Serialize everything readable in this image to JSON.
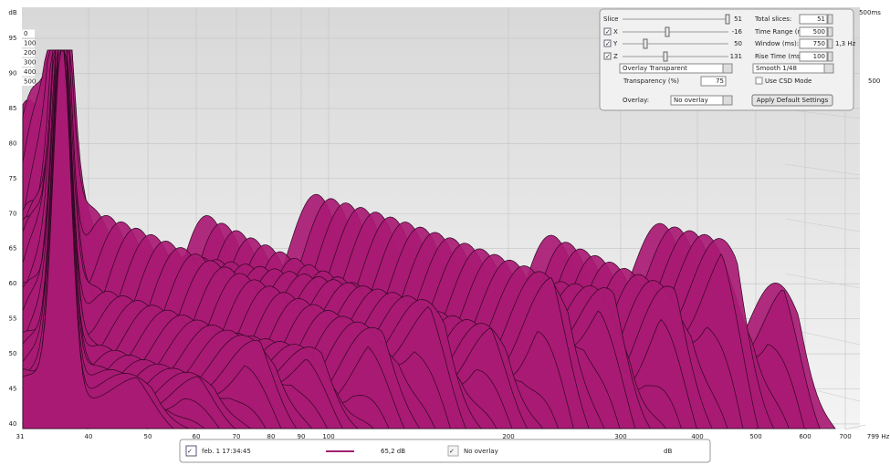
{
  "plot": {
    "y_unit": "dB",
    "y_ticks": [
      95,
      90,
      85,
      80,
      75,
      70,
      65,
      60,
      55,
      50,
      45,
      40
    ],
    "x_ticks": [
      31,
      40,
      50,
      60,
      70,
      80,
      90,
      100,
      200,
      300,
      400,
      500,
      600,
      700,
      "799 Hz"
    ],
    "time_range_label": "500ms",
    "depth_ticks": [
      0,
      100,
      200,
      300,
      400,
      500
    ],
    "depth_end_label": 500
  },
  "controls": {
    "slice": {
      "label": "Slice",
      "value": 51
    },
    "x": {
      "label": "X",
      "value": -16
    },
    "y": {
      "label": "Y",
      "value": 50
    },
    "z": {
      "label": "Z",
      "value": 131
    },
    "total_slices": {
      "label": "Total slices:",
      "value": 51
    },
    "time_range": {
      "label": "Time Range (ms):",
      "value": 500
    },
    "window": {
      "label": "Window (ms):",
      "value": 750,
      "note": "1,3 Hz"
    },
    "rise_time": {
      "label": "Rise Time (ms):",
      "value": 100
    },
    "mode": "Overlay Transparent",
    "smoothing": "Smooth 1/48",
    "transparency": {
      "label": "Transparency (%)",
      "value": 75
    },
    "csd_mode": "Use CSD Mode",
    "overlay": {
      "label": "Overlay:",
      "value": "No overlay"
    },
    "reset_button": "Apply Default Settings"
  },
  "legend": {
    "measurement": "feb. 1 17:34:45",
    "level": "65,2 dB",
    "overlay": "No overlay",
    "overlay_unit": "dB"
  }
}
